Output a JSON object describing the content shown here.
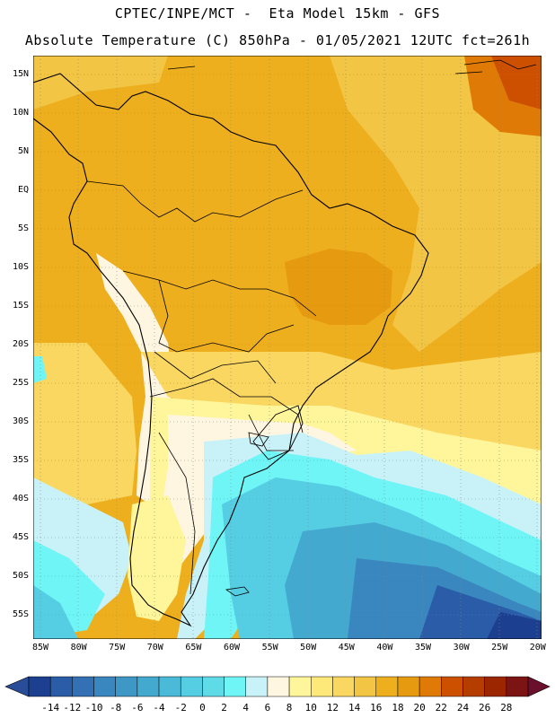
{
  "header": {
    "line1": "CPTEC/INPE/MCT -  Eta Model 15km - GFS",
    "line2": "Absolute Temperature (C) 850hPa - 01/05/2021 12UTC fct=261h"
  },
  "map": {
    "variable": "Absolute Temperature",
    "units": "C",
    "level": "850hPa",
    "region": "South America",
    "lon_range": [
      -86,
      -19.5
    ],
    "lat_range": [
      17.5,
      -57.5
    ],
    "lat_labels": [
      "15N",
      "10N",
      "5N",
      "EQ",
      "5S",
      "10S",
      "15S",
      "20S",
      "25S",
      "30S",
      "35S",
      "40S",
      "45S",
      "50S",
      "55S"
    ],
    "lon_labels": [
      "85W",
      "80W",
      "75W",
      "70W",
      "65W",
      "60W",
      "55W",
      "50W",
      "45W",
      "40W",
      "35W",
      "30W",
      "25W",
      "20W"
    ]
  },
  "colorbar": {
    "labels": [
      "-14",
      "-12",
      "-10",
      "-8",
      "-6",
      "-4",
      "-2",
      "0",
      "2",
      "4",
      "6",
      "8",
      "10",
      "12",
      "14",
      "16",
      "18",
      "20",
      "22",
      "24",
      "26",
      "28"
    ],
    "colors": [
      "#1c3f8f",
      "#2a5ca8",
      "#3470b4",
      "#3a86bf",
      "#3f97c6",
      "#44a9cf",
      "#4bbad8",
      "#55cde3",
      "#5fdbe8",
      "#6ff5f5",
      "#c9f2f8",
      "#fff6e1",
      "#fff59b",
      "#fde87a",
      "#f9d761",
      "#f2c545",
      "#eeaf1e",
      "#e69a0f",
      "#e07a07",
      "#cc5000",
      "#b63d00",
      "#9c2600",
      "#7c1414"
    ],
    "min_color": "#2a4d9a",
    "max_color": "#6a0f2c"
  }
}
